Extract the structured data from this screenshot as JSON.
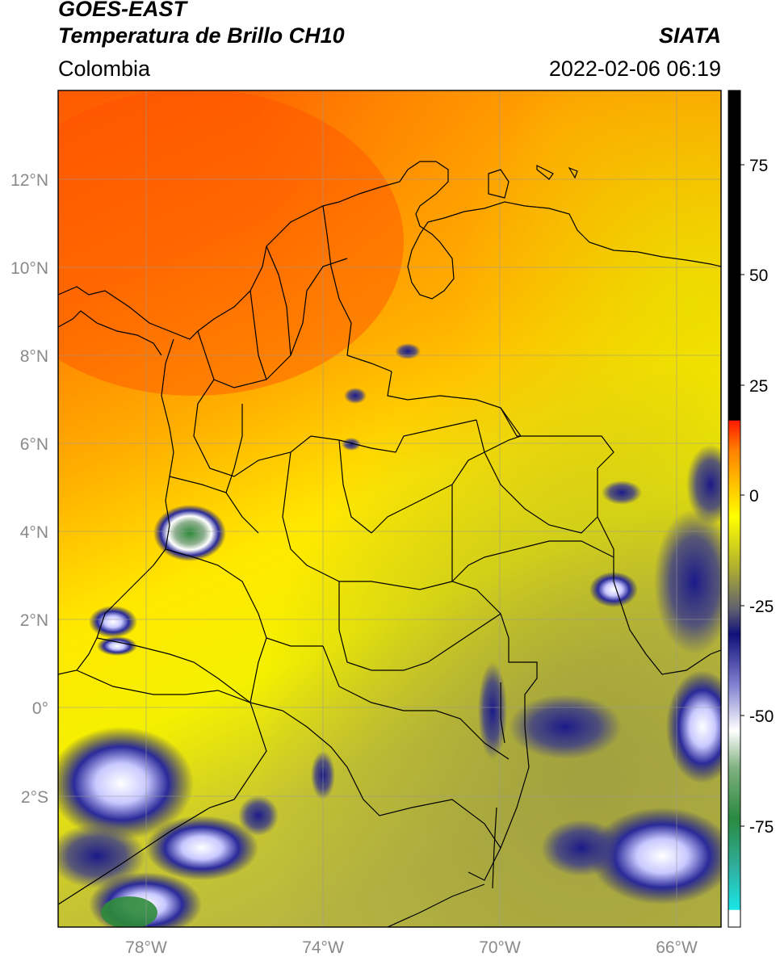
{
  "header": {
    "satellite": "GOES-EAST",
    "product": "Temperatura de Brillo CH10",
    "region": "Colombia",
    "source": "SIATA",
    "datetime": "2022-02-06 06:19"
  },
  "map": {
    "lon_range": [
      -80,
      -65
    ],
    "lat_range": [
      -5,
      14
    ],
    "lon_ticks": [
      "78°W",
      "74°W",
      "70°W",
      "66°W"
    ],
    "lat_ticks": [
      "12°N",
      "10°N",
      "8°N",
      "6°N",
      "4°N",
      "2°N",
      "0°",
      "2°S"
    ],
    "gridlines": true
  },
  "colorbar": {
    "range": [
      -100,
      90
    ],
    "ticks": [
      "75",
      "50",
      "25",
      "0",
      "-25",
      "-50",
      "-75"
    ],
    "colors": {
      "black": "#000000",
      "red": "#ff1a00",
      "orange": "#ff8c00",
      "yellow": "#ffff00",
      "olive": "#a0a040",
      "navy": "#10107a",
      "white": "#ffffff",
      "green": "#2e8b3a",
      "cyan": "#19e6e6"
    }
  }
}
